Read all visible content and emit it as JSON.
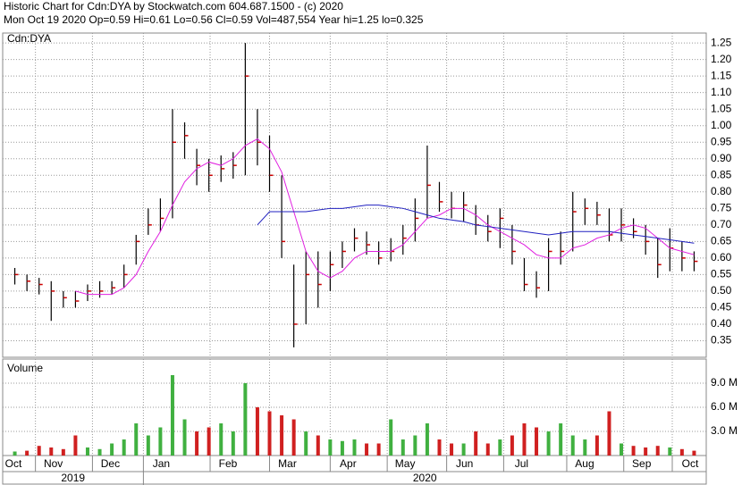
{
  "chart_data": [
    {
      "type": "ohlc",
      "title": "Historic Chart for Cdn:DYA by Stockwatch.com 604.687.1500 - (c) 2020",
      "subtitle": "Mon Oct 19 2020  Op=0.59  Hi=0.61  Lo=0.56  Cl=0.59  Vol=487,554  Year hi=1.25  lo=0.325",
      "label": "Cdn:DYA",
      "x": [
        0,
        1,
        2,
        3,
        4,
        5,
        6,
        7,
        8,
        9,
        10,
        11,
        12,
        13,
        14,
        15,
        16,
        17,
        18,
        19,
        20,
        21,
        22,
        23,
        24,
        25,
        26,
        27,
        28,
        29,
        30,
        31,
        32,
        33,
        34,
        35,
        36,
        37,
        38,
        39,
        40,
        41,
        42,
        43,
        44,
        45,
        46,
        47,
        48,
        49,
        50,
        51,
        52,
        53,
        54,
        55,
        56
      ],
      "high": [
        0.57,
        0.55,
        0.54,
        0.53,
        0.5,
        0.5,
        0.52,
        0.53,
        0.53,
        0.58,
        0.67,
        0.75,
        0.78,
        1.05,
        1.01,
        0.93,
        0.9,
        0.91,
        0.92,
        1.25,
        1.05,
        0.97,
        0.85,
        0.58,
        0.62,
        0.62,
        0.62,
        0.65,
        0.69,
        0.68,
        0.65,
        0.66,
        0.7,
        0.78,
        0.94,
        0.83,
        0.8,
        0.8,
        0.76,
        0.73,
        0.75,
        0.7,
        0.6,
        0.56,
        0.66,
        0.68,
        0.8,
        0.78,
        0.77,
        0.75,
        0.75,
        0.72,
        0.7,
        0.66,
        0.69,
        0.65,
        0.62
      ],
      "low": [
        0.52,
        0.5,
        0.49,
        0.41,
        0.45,
        0.45,
        0.47,
        0.48,
        0.49,
        0.51,
        0.58,
        0.67,
        0.68,
        0.72,
        0.9,
        0.82,
        0.8,
        0.83,
        0.84,
        0.85,
        0.88,
        0.8,
        0.6,
        0.33,
        0.4,
        0.45,
        0.5,
        0.57,
        0.62,
        0.61,
        0.58,
        0.59,
        0.61,
        0.65,
        0.72,
        0.74,
        0.72,
        0.71,
        0.67,
        0.65,
        0.63,
        0.58,
        0.5,
        0.48,
        0.5,
        0.58,
        0.62,
        0.7,
        0.7,
        0.65,
        0.65,
        0.66,
        0.61,
        0.54,
        0.56,
        0.56,
        0.56
      ],
      "close": [
        0.55,
        0.53,
        0.52,
        0.5,
        0.48,
        0.47,
        0.5,
        0.5,
        0.51,
        0.55,
        0.65,
        0.7,
        0.72,
        0.95,
        0.97,
        0.88,
        0.85,
        0.87,
        0.88,
        1.15,
        0.95,
        0.85,
        0.65,
        0.4,
        0.55,
        0.52,
        0.58,
        0.62,
        0.66,
        0.64,
        0.6,
        0.62,
        0.66,
        0.72,
        0.82,
        0.77,
        0.75,
        0.76,
        0.7,
        0.68,
        0.72,
        0.62,
        0.52,
        0.51,
        0.62,
        0.62,
        0.74,
        0.75,
        0.73,
        0.67,
        0.7,
        0.68,
        0.65,
        0.58,
        0.63,
        0.6,
        0.59
      ],
      "bar_color": "#000000",
      "close_color": "#cc0000",
      "series": [
        {
          "color": "#e020e0",
          "values": [
            null,
            null,
            null,
            null,
            null,
            0.5,
            0.49,
            0.49,
            0.49,
            0.51,
            0.55,
            0.62,
            0.68,
            0.76,
            0.83,
            0.87,
            0.89,
            0.88,
            0.9,
            0.94,
            0.96,
            0.93,
            0.86,
            0.74,
            0.62,
            0.56,
            0.54,
            0.56,
            0.6,
            0.62,
            0.62,
            0.62,
            0.64,
            0.68,
            0.72,
            0.73,
            0.75,
            0.75,
            0.73,
            0.7,
            0.68,
            0.66,
            0.64,
            0.61,
            0.6,
            0.6,
            0.63,
            0.64,
            0.66,
            0.67,
            0.69,
            0.7,
            0.69,
            0.66,
            0.63,
            0.62,
            0.61
          ]
        },
        {
          "color": "#2020c0",
          "values": [
            null,
            null,
            null,
            null,
            null,
            null,
            null,
            null,
            null,
            null,
            null,
            null,
            null,
            null,
            null,
            null,
            null,
            null,
            null,
            null,
            0.7,
            0.74,
            0.74,
            0.74,
            0.74,
            0.745,
            0.75,
            0.75,
            0.755,
            0.76,
            0.76,
            0.755,
            0.75,
            0.74,
            0.73,
            0.72,
            0.715,
            0.71,
            0.7,
            0.695,
            0.69,
            0.685,
            0.68,
            0.675,
            0.67,
            0.675,
            0.68,
            0.68,
            0.68,
            0.68,
            0.675,
            0.67,
            0.665,
            0.66,
            0.655,
            0.65,
            0.645
          ]
        }
      ],
      "xlim": [
        -1,
        57
      ],
      "xticks": [
        {
          "value": -1,
          "label": "Oct"
        },
        {
          "value": 1.7,
          "label": "Nov"
        },
        {
          "value": 6.4,
          "label": "Dec"
        },
        {
          "value": 10.6,
          "label": "Jan"
        },
        {
          "value": 16.1,
          "label": "Feb"
        },
        {
          "value": 21,
          "label": "Mar"
        },
        {
          "value": 26,
          "label": "Apr"
        },
        {
          "value": 30.7,
          "label": "May"
        },
        {
          "value": 35.6,
          "label": "Jun"
        },
        {
          "value": 40.3,
          "label": "Jul"
        },
        {
          "value": 45.5,
          "label": "Aug"
        },
        {
          "value": 50.2,
          "label": "Sep"
        },
        {
          "value": 54.2,
          "label": "Oct"
        }
      ],
      "year_labels": [
        "2019",
        "2020"
      ],
      "ylim": [
        0.3,
        1.28
      ],
      "yticks": [
        0.35,
        {
          "value": 0.4,
          "label": "0.40"
        },
        0.45,
        {
          "value": 0.5,
          "label": "0.50"
        },
        0.55,
        {
          "value": 0.6,
          "label": "0.60"
        },
        0.65,
        {
          "value": 0.7,
          "label": "0.70"
        },
        0.75,
        {
          "value": 0.8,
          "label": "0.80"
        },
        0.85,
        {
          "value": 0.9,
          "label": "0.90"
        },
        0.95,
        {
          "value": 1.0,
          "label": "1.00"
        },
        1.05,
        {
          "value": 1.1,
          "label": "1.10"
        },
        1.15,
        {
          "value": 1.2,
          "label": "1.20"
        },
        1.25
      ],
      "grid": true
    },
    {
      "type": "bar",
      "title": "Volume",
      "values": [
        0.5,
        0.6,
        1.2,
        1.0,
        0.8,
        2.5,
        1.0,
        0.8,
        1.5,
        2.0,
        4.0,
        2.5,
        3.5,
        10.0,
        4.5,
        3.0,
        3.5,
        4.0,
        3.0,
        9.0,
        6.0,
        5.5,
        5.0,
        4.5,
        3.0,
        2.5,
        2.0,
        1.8,
        2.0,
        1.5,
        1.5,
        4.5,
        2.0,
        2.5,
        4.0,
        2.0,
        1.5,
        1.5,
        3.0,
        1.5,
        2.0,
        2.5,
        4.0,
        3.5,
        3.0,
        4.0,
        2.5,
        2.0,
        2.5,
        5.5,
        1.5,
        1.2,
        1.0,
        1.2,
        1.0,
        0.8,
        0.6
      ],
      "up_color": "#40b040",
      "down_color": "#d02020",
      "ylim": [
        0,
        12
      ],
      "yticks": [
        {
          "value": 3,
          "label": "3.0 M"
        },
        {
          "value": 6,
          "label": "6.0 M"
        },
        {
          "value": 9,
          "label": "9.0 M"
        }
      ],
      "grid": true
    }
  ]
}
